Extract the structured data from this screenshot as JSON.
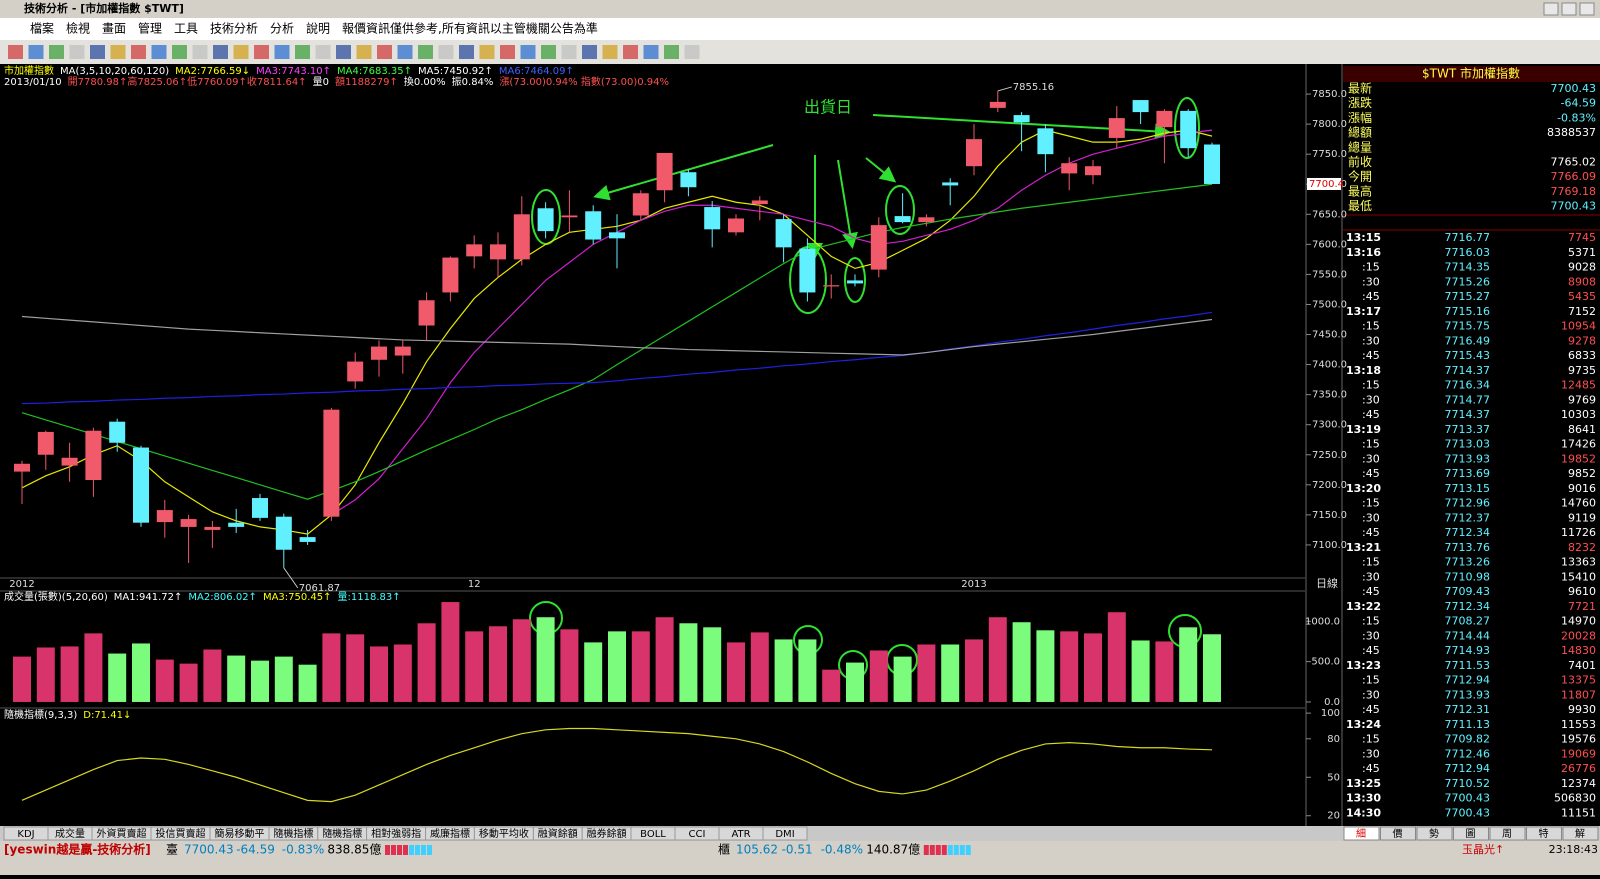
{
  "window_title": "技術分析 - [市加權指數 $TWT]",
  "menu": [
    "檔案",
    "檢視",
    "畫面",
    "管理",
    "工具",
    "技術分析",
    "分析",
    "說明",
    "報價資訊僅供參考,所有資訊以主管機關公告為準"
  ],
  "price_chart": {
    "info_line1": [
      {
        "text": "市加權指數",
        "color": "#ffff00"
      },
      {
        "text": "MA(3,5,10,20,60,120)",
        "color": "#ffffff"
      },
      {
        "text": "MA2:7766.59↓",
        "color": "#ffff00"
      },
      {
        "text": "MA3:7743.10↑",
        "color": "#ff40ff"
      },
      {
        "text": "MA4:7683.35↑",
        "color": "#40ff40"
      },
      {
        "text": "MA5:7450.92↑",
        "color": "#ffffff"
      },
      {
        "text": "MA6:7464.09↑",
        "color": "#4060ff"
      }
    ],
    "info_line2": [
      {
        "text": "2013/01/10",
        "color": "#ffffff"
      },
      {
        "text": "開7780.98↑高7825.06↑低7760.09↑收7811.64↑",
        "color": "#ff5050"
      },
      {
        "text": "量0",
        "color": "#ffffff"
      },
      {
        "text": "額1188279↑",
        "color": "#ff5050"
      },
      {
        "text": "換0.00%",
        "color": "#ffffff"
      },
      {
        "text": "振0.84%",
        "color": "#ffffff"
      },
      {
        "text": "漲(73.00)0.94% 指數(73.00)0.94%",
        "color": "#ff5050"
      }
    ],
    "open": [
      7222,
      7250,
      7232,
      7208,
      7305,
      7262,
      7138,
      7130,
      7125,
      7137,
      7178,
      7147,
      7113,
      7147,
      7372,
      7408,
      7415,
      7465,
      7520,
      7580,
      7575,
      7575,
      7660,
      7645,
      7655,
      7620,
      7648,
      7690,
      7720,
      7662,
      7620,
      7667,
      7642,
      7593,
      7530,
      7540,
      7558,
      7647,
      7637,
      7703,
      7730,
      7827,
      7815,
      7793,
      7718,
      7715,
      7777,
      7840,
      7795,
      7822,
      7766.09
    ],
    "high": [
      7240,
      7290,
      7270,
      7295,
      7310,
      7265,
      7175,
      7150,
      7140,
      7160,
      7185,
      7152,
      7125,
      7328,
      7420,
      7440,
      7440,
      7520,
      7580,
      7615,
      7620,
      7680,
      7670,
      7690,
      7665,
      7650,
      7690,
      7752,
      7725,
      7672,
      7650,
      7680,
      7650,
      7610,
      7550,
      7550,
      7645,
      7685,
      7650,
      7710,
      7800,
      7855.16,
      7820,
      7800,
      7745,
      7740,
      7830,
      7840,
      7825,
      7825,
      7769.18
    ],
    "low": [
      7168,
      7225,
      7205,
      7180,
      7255,
      7130,
      7112,
      7070,
      7095,
      7120,
      7140,
      7061.87,
      7100,
      7140,
      7360,
      7380,
      7385,
      7440,
      7505,
      7560,
      7545,
      7565,
      7610,
      7620,
      7600,
      7560,
      7640,
      7670,
      7680,
      7595,
      7615,
      7640,
      7570,
      7505,
      7510,
      7530,
      7545,
      7635,
      7630,
      7665,
      7715,
      7820,
      7755,
      7720,
      7690,
      7700,
      7760,
      7800,
      7735,
      7745,
      7700.43
    ],
    "close": [
      7235,
      7288,
      7245,
      7290,
      7270,
      7137,
      7158,
      7143,
      7130,
      7130,
      7145,
      7092,
      7105,
      7325,
      7405,
      7430,
      7430,
      7507,
      7578,
      7600,
      7600,
      7650,
      7622,
      7648,
      7608,
      7610,
      7685,
      7752,
      7695,
      7625,
      7643,
      7673,
      7595,
      7520,
      7532,
      7535,
      7632,
      7637,
      7645,
      7698,
      7775,
      7837,
      7803,
      7750,
      7735,
      7730,
      7810,
      7820,
      7822,
      7760,
      7700.43
    ],
    "up_color": "#f05a6a",
    "down_color": "#60f0ff",
    "ma": [
      {
        "color": "#e8e800",
        "values": [
          7195,
          7215,
          7230,
          7250,
          7265,
          7240,
          7205,
          7180,
          7155,
          7140,
          7130,
          7125,
          7118,
          7150,
          7200,
          7270,
          7335,
          7405,
          7460,
          7510,
          7545,
          7575,
          7600,
          7620,
          7625,
          7630,
          7640,
          7660,
          7670,
          7680,
          7670,
          7665,
          7650,
          7615,
          7580,
          7560,
          7570,
          7590,
          7610,
          7640,
          7680,
          7730,
          7770,
          7790,
          7780,
          7770,
          7770,
          7775,
          7785,
          7790,
          7780
        ]
      },
      {
        "color": "#d020d0",
        "values": [
          null,
          null,
          null,
          null,
          null,
          null,
          null,
          null,
          null,
          null,
          null,
          null,
          null,
          7150,
          7175,
          7210,
          7260,
          7310,
          7370,
          7420,
          7460,
          7500,
          7540,
          7570,
          7600,
          7620,
          7640,
          7655,
          7665,
          7665,
          7660,
          7655,
          7650,
          7640,
          7630,
          7610,
          7600,
          7605,
          7615,
          7625,
          7640,
          7660,
          7690,
          7715,
          7735,
          7750,
          7760,
          7770,
          7780,
          7785,
          7790
        ]
      },
      {
        "color": "#20c020",
        "values": [
          7320,
          7308,
          7296,
          7284,
          7272,
          7260,
          7248,
          7236,
          7224,
          7212,
          7200,
          7188,
          7176,
          7190,
          7205,
          7222,
          7240,
          7258,
          7275,
          7292,
          7310,
          7325,
          7342,
          7358,
          7375,
          7400,
          7424,
          7448,
          7472,
          7496,
          7520,
          7544,
          7568,
          7590,
          7600,
          7610,
          7620,
          7628,
          7635,
          7642,
          7648,
          7654,
          7660,
          7665,
          7670,
          7675,
          7680,
          7685,
          7690,
          7695,
          7700
        ]
      },
      {
        "color": "#2020e0",
        "values": [
          7335,
          7336,
          7338,
          7339,
          7341,
          7342,
          7344,
          7345,
          7347,
          7348,
          7350,
          7351,
          7353,
          7354,
          7356,
          7357,
          7359,
          7360,
          7362,
          7363,
          7365,
          7366,
          7368,
          7369,
          7370,
          7373,
          7377,
          7380,
          7384,
          7387,
          7391,
          7394,
          7398,
          7401,
          7405,
          7408,
          7412,
          7415,
          7420,
          7426,
          7431,
          7437,
          7442,
          7448,
          7453,
          7459,
          7465,
          7470,
          7476,
          7481,
          7487
        ]
      },
      {
        "color": "#a0a0a0",
        "values": [
          7480,
          7477,
          7474,
          7471,
          7468,
          7465,
          7462,
          7459,
          7457,
          7455,
          7453,
          7451,
          7449,
          7447,
          7445,
          7443,
          7441,
          7440,
          7439,
          7438,
          7437,
          7436,
          7435,
          7434,
          7432,
          7430,
          7428,
          7427,
          7425,
          7424,
          7423,
          7422,
          7421,
          7420,
          7419,
          7418,
          7417,
          7416,
          7420,
          7425,
          7430,
          7434,
          7438,
          7442,
          7446,
          7450,
          7455,
          7460,
          7465,
          7470,
          7475
        ]
      }
    ],
    "ylim": [
      7045,
      7900
    ],
    "yticks": [
      {
        "value": 7100,
        "label": "7100.0"
      },
      {
        "value": 7150,
        "label": "7150.0"
      },
      {
        "value": 7200,
        "label": "7200.0"
      },
      {
        "value": 7250,
        "label": "7250.0"
      },
      {
        "value": 7300,
        "label": "7300.0"
      },
      {
        "value": 7350,
        "label": "7350.0"
      },
      {
        "value": 7400,
        "label": "7400.0"
      },
      {
        "value": 7450,
        "label": "7450.0"
      },
      {
        "value": 7500,
        "label": "7500.0"
      },
      {
        "value": 7550,
        "label": "7550.0"
      },
      {
        "value": 7600,
        "label": "7600.0"
      },
      {
        "value": 7650,
        "label": "7650.0"
      },
      {
        "value": 7700,
        "label": "7700.0"
      },
      {
        "value": 7750,
        "label": "7750.0"
      },
      {
        "value": 7800,
        "label": "7800.0"
      },
      {
        "value": 7850,
        "label": "7850.0"
      }
    ],
    "last_price_tag": "7700.4",
    "high_label": "7855.16",
    "low_label": "7061.87",
    "annotation": "出貨日",
    "x_labels": [
      "2012",
      null,
      null,
      null,
      null,
      null,
      null,
      null,
      null,
      null,
      null,
      null,
      null,
      null,
      null,
      null,
      null,
      null,
      null,
      "12",
      null,
      null,
      null,
      null,
      null,
      null,
      null,
      null,
      null,
      null,
      null,
      null,
      null,
      null,
      null,
      null,
      null,
      null,
      null,
      null,
      "2013",
      null,
      null,
      null,
      null,
      null,
      null,
      null,
      null,
      null,
      null
    ],
    "period": "日線"
  },
  "volume_chart": {
    "header": [
      {
        "text": "成交量(張數)(5,20,60)",
        "color": "#ffffff"
      },
      {
        "text": "MA1:941.72↑",
        "color": "#ffffff"
      },
      {
        "text": "MA2:806.02↑",
        "color": "#40ffff"
      },
      {
        "text": "MA3:750.45↑",
        "color": "#ffff00"
      },
      {
        "text": "量:1118.83↑",
        "color": "#40ffff"
      }
    ],
    "values": [
      562,
      675,
      688,
      850,
      600,
      725,
      525,
      475,
      650,
      575,
      512,
      562,
      462,
      850,
      838,
      688,
      712,
      975,
      1238,
      875,
      938,
      1025,
      1050,
      900,
      738,
      875,
      875,
      1050,
      975,
      925,
      738,
      862,
      775,
      775,
      400,
      488,
      638,
      562,
      712,
      712,
      775,
      1050,
      988,
      888,
      875,
      850,
      1112,
      762,
      750,
      925,
      838.85
    ],
    "up_color": "#d8336a",
    "down_color": "#7cfc7c",
    "ylim": [
      -50,
      1375
    ],
    "yticks": [
      {
        "value": 0,
        "label": "0.0"
      },
      {
        "value": 500,
        "label": "500.0"
      },
      {
        "value": 1000,
        "label": "1000.0"
      }
    ]
  },
  "kd_chart": {
    "header": [
      {
        "text": "隨機指標(9,3,3)",
        "color": "#ffffff"
      },
      {
        "text": "D:71.41↓",
        "color": "#ffff00"
      }
    ],
    "values": [
      32,
      40,
      48,
      56,
      63,
      65,
      64,
      60,
      55,
      50,
      44,
      38,
      32,
      31,
      36,
      44,
      52,
      60,
      67,
      73,
      79,
      84,
      87,
      88,
      88,
      87,
      86,
      85,
      84,
      82,
      80,
      76,
      70,
      62,
      53,
      45,
      39,
      37,
      40,
      47,
      55,
      64,
      71,
      76,
      77,
      76,
      74,
      73,
      73,
      72,
      71.41
    ],
    "color": "#d8d820",
    "ylim": [
      12,
      104
    ],
    "yticks": [
      20,
      50,
      80,
      100
    ]
  },
  "quote_panel": {
    "title": "$TWT 市加權指數",
    "rows": [
      {
        "label": "最新",
        "value": "7700.43",
        "color": "#60f0ff"
      },
      {
        "label": "漲跌",
        "value": "-64.59",
        "color": "#60f0ff"
      },
      {
        "label": "漲幅",
        "value": "-0.83%",
        "color": "#60f0ff"
      },
      {
        "label": "總額",
        "value": "8388537",
        "color": "#ffffff"
      },
      {
        "label": "總量"
      },
      {
        "label": "前收",
        "value": "7765.02",
        "color": "#ffffff"
      },
      {
        "label": "今開",
        "value": "7766.09",
        "color": "#ff5050"
      },
      {
        "label": "最高",
        "value": "7769.18",
        "color": "#ff5050"
      },
      {
        "label": "最低",
        "value": "7700.43",
        "color": "#60f0ff"
      }
    ],
    "ticks": [
      [
        "13:15",
        "7716.77",
        "7745"
      ],
      [
        "13:16",
        "7716.03",
        "5371"
      ],
      [
        ":15",
        "7714.35",
        "9028"
      ],
      [
        ":30",
        "7715.26",
        "8908"
      ],
      [
        ":45",
        "7715.27",
        "5435"
      ],
      [
        "13:17",
        "7715.16",
        "7152"
      ],
      [
        ":15",
        "7715.75",
        "10954"
      ],
      [
        ":30",
        "7716.49",
        "9278"
      ],
      [
        ":45",
        "7715.43",
        "6833"
      ],
      [
        "13:18",
        "7714.37",
        "9735"
      ],
      [
        ":15",
        "7716.34",
        "12485"
      ],
      [
        ":30",
        "7714.77",
        "9769"
      ],
      [
        ":45",
        "7714.37",
        "10303"
      ],
      [
        "13:19",
        "7713.37",
        "8641"
      ],
      [
        ":15",
        "7713.03",
        "17426"
      ],
      [
        ":30",
        "7713.93",
        "19852"
      ],
      [
        ":45",
        "7713.69",
        "9852"
      ],
      [
        "13:20",
        "7713.15",
        "9016"
      ],
      [
        ":15",
        "7712.96",
        "14760"
      ],
      [
        ":30",
        "7712.37",
        "9119"
      ],
      [
        ":45",
        "7712.34",
        "11726"
      ],
      [
        "13:21",
        "7713.76",
        "8232"
      ],
      [
        ":15",
        "7713.26",
        "13363"
      ],
      [
        ":30",
        "7710.98",
        "15410"
      ],
      [
        ":45",
        "7709.43",
        "9610"
      ],
      [
        "13:22",
        "7712.34",
        "7721"
      ],
      [
        ":15",
        "7708.27",
        "14970"
      ],
      [
        ":30",
        "7714.44",
        "20028"
      ],
      [
        ":45",
        "7714.93",
        "14830"
      ],
      [
        "13:23",
        "7711.53",
        "7401"
      ],
      [
        ":15",
        "7712.94",
        "13375"
      ],
      [
        ":30",
        "7713.93",
        "11807"
      ],
      [
        ":45",
        "7712.31",
        "9930"
      ],
      [
        "13:24",
        "7711.13",
        "11553"
      ],
      [
        ":15",
        "7709.82",
        "19576"
      ],
      [
        ":30",
        "7712.46",
        "19069"
      ],
      [
        ":45",
        "7712.94",
        "26776"
      ],
      [
        "13:25",
        "7710.52",
        "12374"
      ],
      [
        "13:30",
        "7700.43",
        "506830"
      ],
      [
        "14:30",
        "7700.43",
        "11151"
      ]
    ],
    "tabs": [
      "細",
      "價",
      "勢",
      "圖",
      "周",
      "特",
      "解"
    ]
  },
  "indicator_tabs": [
    "KDJ",
    "成交量",
    "外資買賣超",
    "投信買賣超",
    "簡易移動平",
    "隨機指標",
    "隨機指標",
    "相對強弱指",
    "威廉指標",
    "移動平均收",
    "融資餘額",
    "融券餘額",
    "BOLL",
    "CCI",
    "ATR",
    "DMI"
  ],
  "status_bar": {
    "app": "[yeswin越是贏-技術分析]",
    "twse": [
      "臺",
      "7700.43",
      "-64.59",
      "-0.83%",
      "838.85億"
    ],
    "otc": [
      "櫃",
      "105.62",
      "-0.51",
      "-0.48%",
      "140.87億"
    ],
    "stock": "玉晶光↑",
    "time": "23:18:43"
  }
}
